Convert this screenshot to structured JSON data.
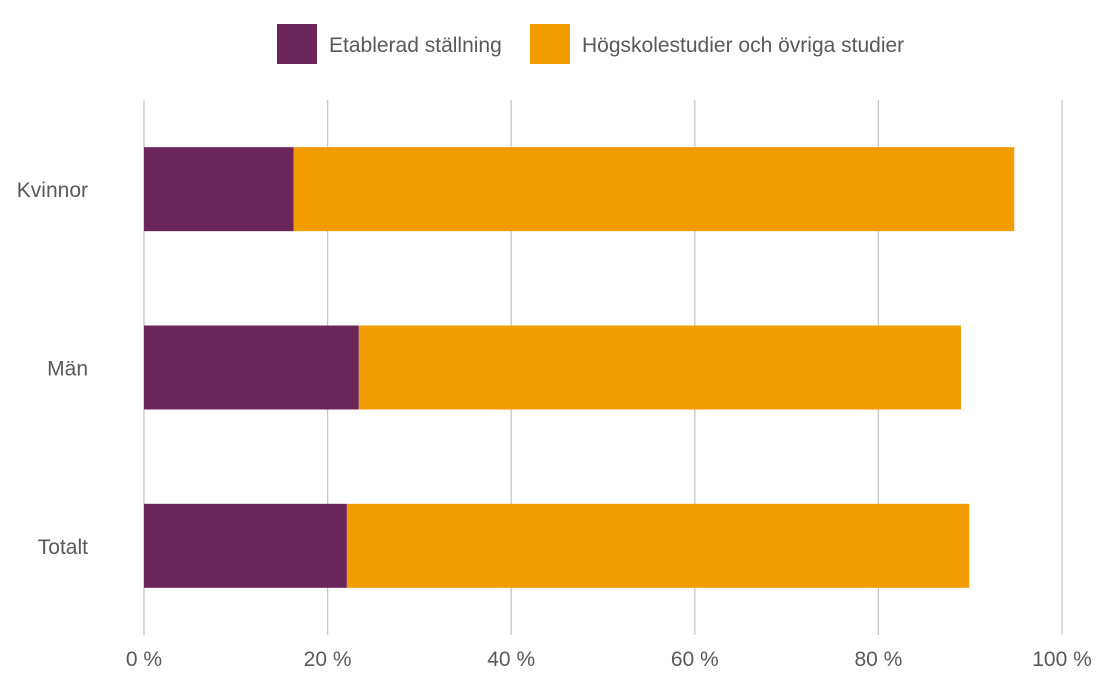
{
  "chart_data": {
    "type": "bar",
    "orientation": "horizontal",
    "stacked": true,
    "categories": [
      "Kvinnor",
      "Män",
      "Totalt"
    ],
    "series": [
      {
        "name": "Etablerad ställning",
        "color": "#6B2759",
        "values": [
          16.3,
          23.4,
          22.1
        ]
      },
      {
        "name": "Högskolestudier och övriga studier",
        "color": "#F39C00",
        "values": [
          78.5,
          65.6,
          67.8
        ]
      }
    ],
    "xlim": [
      0,
      100
    ],
    "xticks": [
      0,
      20,
      40,
      60,
      80,
      100
    ],
    "xtick_labels": [
      "0 %",
      "20 %",
      "40 %",
      "60 %",
      "80 %",
      "100 %"
    ],
    "grid": "vertical",
    "legend_position": "top",
    "title": "",
    "xlabel": "",
    "ylabel": ""
  }
}
